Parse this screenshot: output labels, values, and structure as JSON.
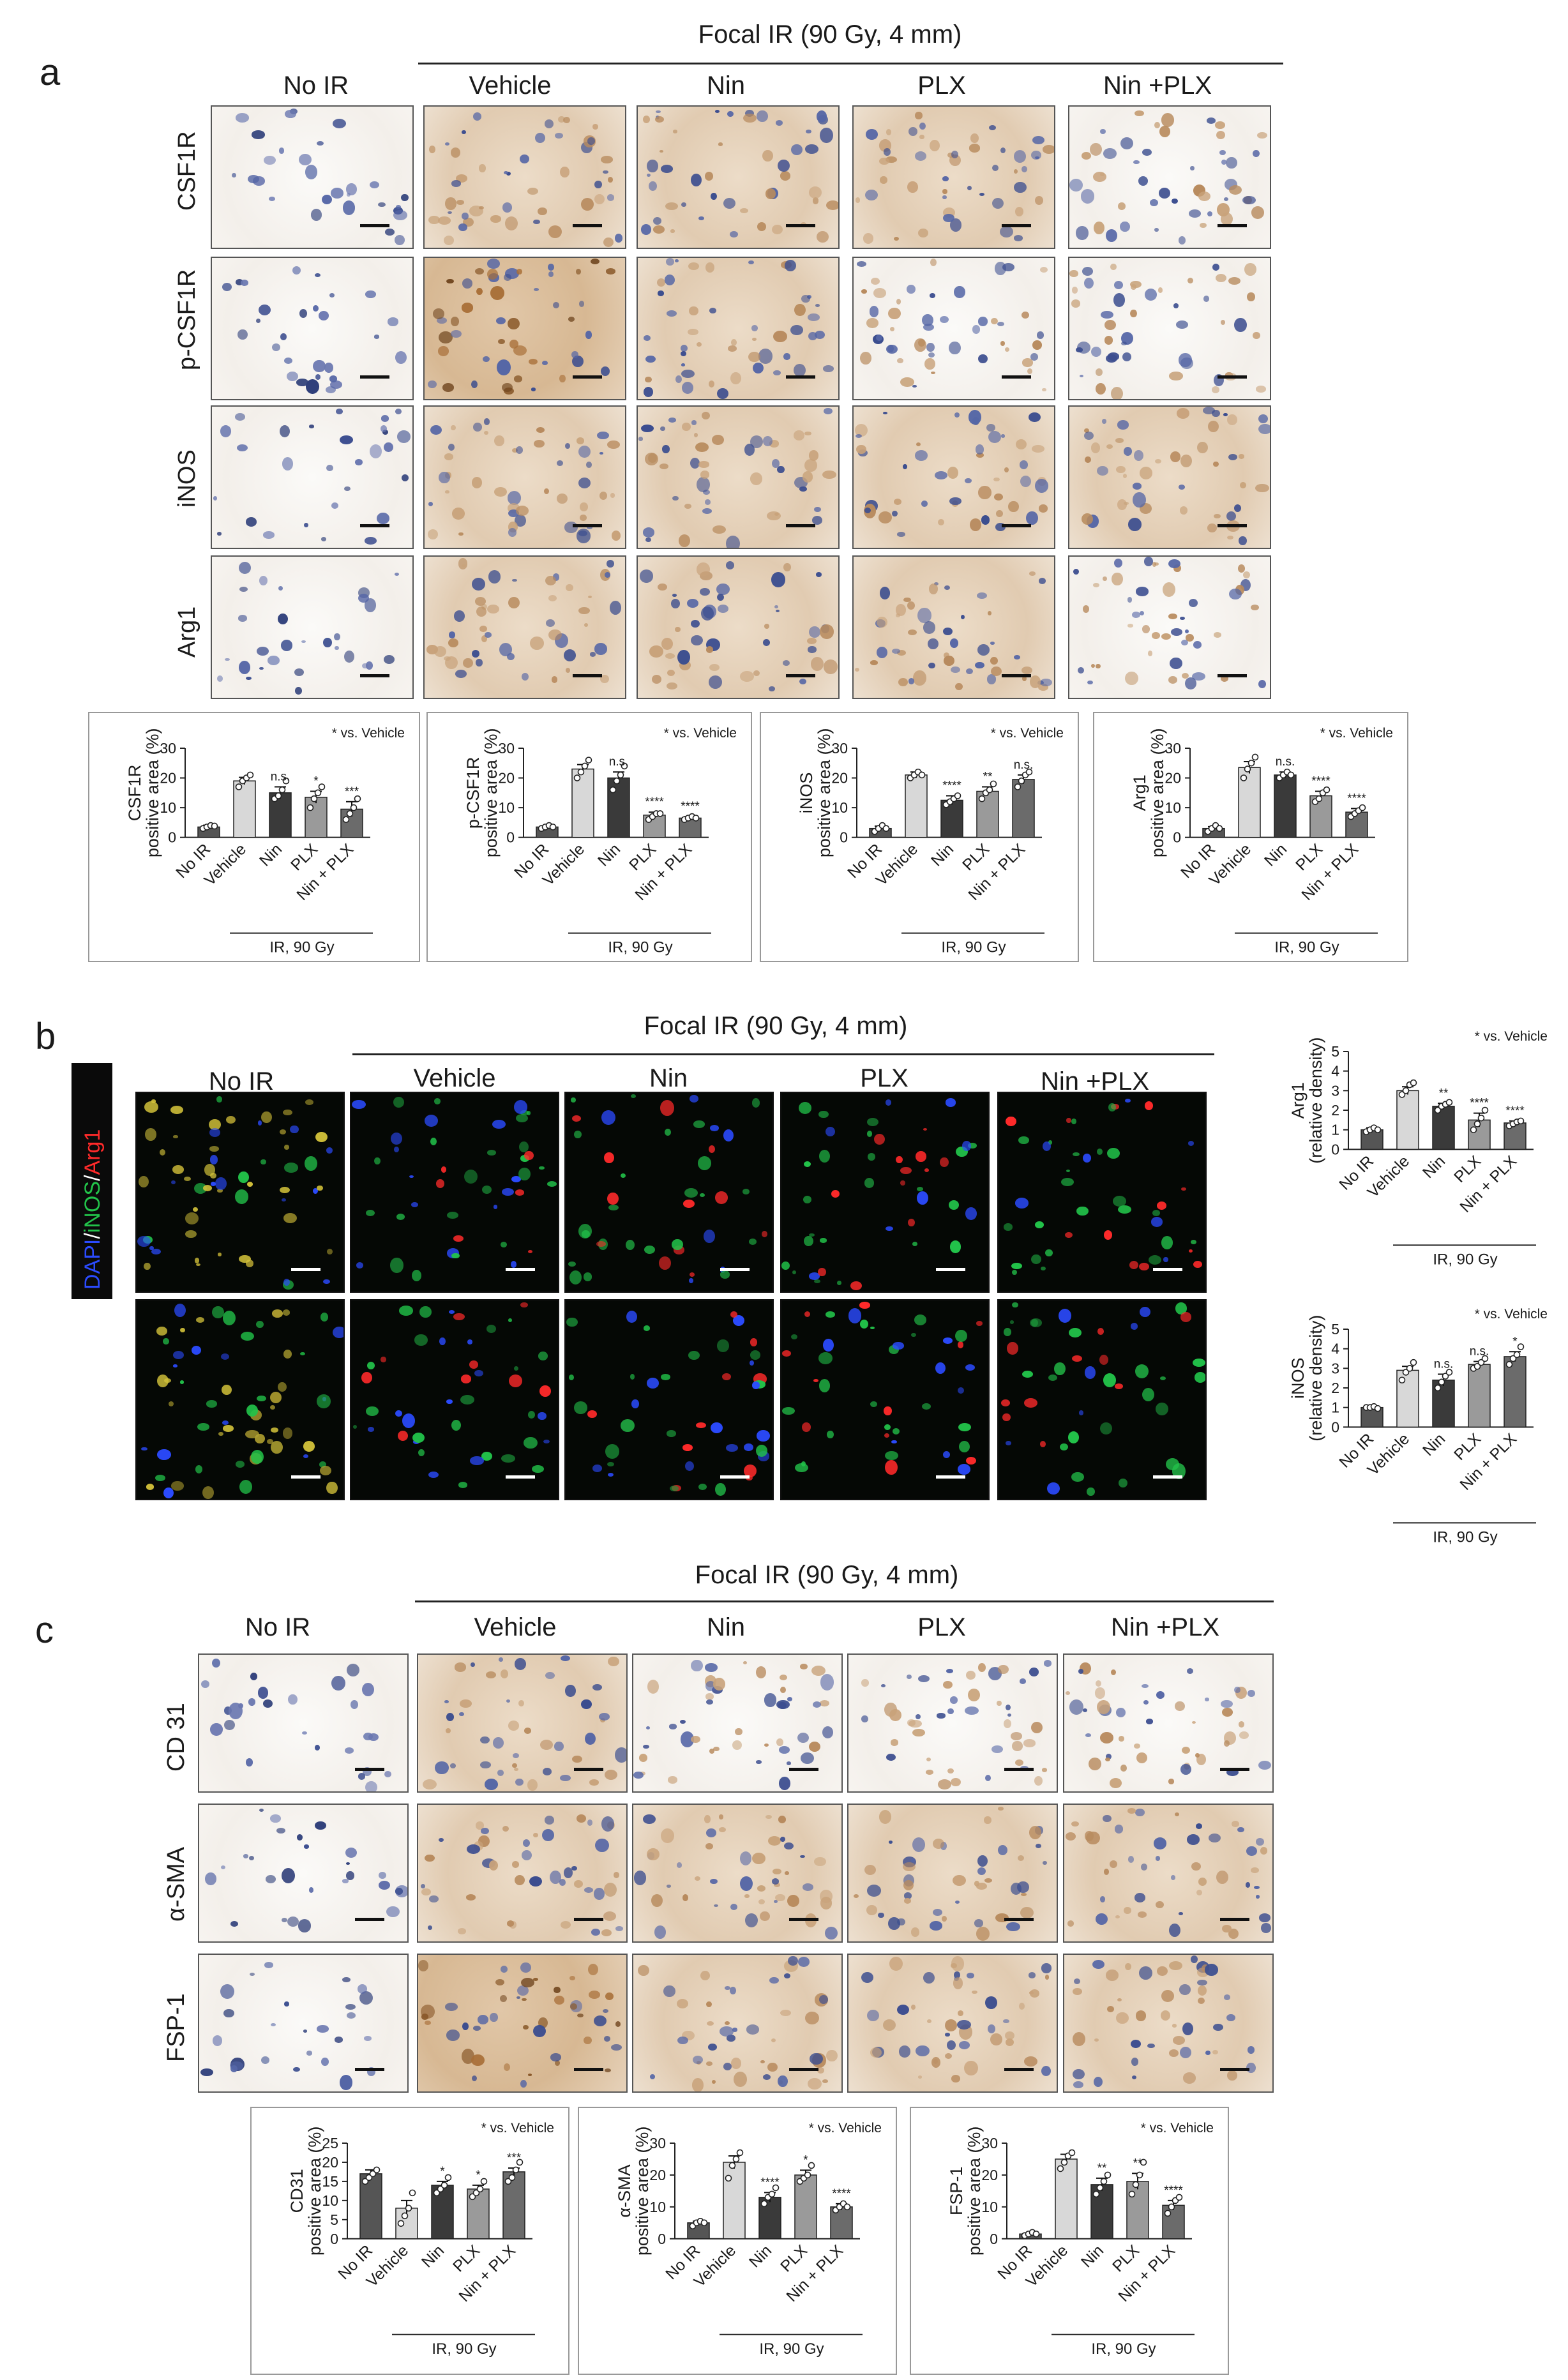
{
  "panels": {
    "a": {
      "letter": "a",
      "focal": "Focal IR (90 Gy, 4 mm)",
      "columns": [
        "No IR",
        "Vehicle",
        "Nin",
        "PLX",
        "Nin +PLX"
      ],
      "rows": [
        "CSF1R",
        "p-CSF1R",
        "iNOS",
        "Arg1"
      ]
    },
    "b": {
      "letter": "b",
      "focal": "Focal IR (90 Gy, 4 mm)",
      "columns": [
        "No IR",
        "Vehicle",
        "Nin",
        "PLX",
        "Nin +PLX"
      ],
      "stain": {
        "dapi": "DAPI",
        "sep1": "/",
        "inos": "iNOS",
        "sep2": "/",
        "arg1": "Arg1"
      },
      "stain_colors": {
        "dapi": "#2b4bff",
        "inos": "#22c34a",
        "arg1": "#ff2a2a"
      }
    },
    "c": {
      "letter": "c",
      "focal": "Focal IR (90 Gy, 4 mm)",
      "columns": [
        "No IR",
        "Vehicle",
        "Nin",
        "PLX",
        "Nin +PLX"
      ],
      "rows": [
        "CD 31",
        "α-SMA",
        "FSP-1"
      ]
    }
  },
  "chart_data": [
    {
      "id": "a1",
      "type": "bar",
      "categories": [
        "No IR",
        "Vehicle",
        "Nin",
        "PLX",
        "Nin + PLX"
      ],
      "values": [
        3.5,
        19,
        15,
        13.5,
        9.5
      ],
      "errors": [
        0.6,
        1.2,
        2.0,
        2.0,
        2.5
      ],
      "points": [
        [
          3,
          3.5,
          4,
          3.8
        ],
        [
          17,
          19,
          20,
          21
        ],
        [
          13,
          14,
          16,
          19
        ],
        [
          10,
          13,
          15,
          17
        ],
        [
          6,
          8,
          10,
          13
        ]
      ],
      "sig": [
        "",
        "",
        "n.s.",
        "*",
        "***"
      ],
      "ylim": [
        0,
        30
      ],
      "yticks": [
        0,
        10,
        20,
        30
      ],
      "ylabel": [
        "CSF1R",
        "positive area (%)"
      ],
      "note": "* vs. Vehicle",
      "group": "IR, 90  Gy"
    },
    {
      "id": "a2",
      "type": "bar",
      "categories": [
        "No IR",
        "Vehicle",
        "Nin",
        "PLX",
        "Nin + PLX"
      ],
      "values": [
        3.5,
        23,
        20,
        7.5,
        6.5
      ],
      "errors": [
        0.4,
        1.5,
        2.0,
        1.0,
        0.5
      ],
      "points": [
        [
          3,
          3.5,
          4,
          3.5
        ],
        [
          20,
          22,
          24,
          26
        ],
        [
          16,
          19,
          21,
          24
        ],
        [
          6,
          7,
          8,
          8
        ],
        [
          6,
          6.5,
          7,
          6.5
        ]
      ],
      "sig": [
        "",
        "",
        "n.s.",
        "****",
        "****"
      ],
      "ylim": [
        0,
        30
      ],
      "yticks": [
        0,
        10,
        20,
        30
      ],
      "ylabel": [
        "p-CSF1R",
        "positive area (%)"
      ],
      "note": "* vs. Vehicle",
      "group": "IR, 90 Gy"
    },
    {
      "id": "a3",
      "type": "bar",
      "categories": [
        "No IR",
        "Vehicle",
        "Nin",
        "PLX",
        "Nin + PLX"
      ],
      "values": [
        3,
        21,
        12.5,
        15.5,
        19.5
      ],
      "errors": [
        0.8,
        1.0,
        1.5,
        1.5,
        1.5
      ],
      "points": [
        [
          2,
          3,
          4,
          3
        ],
        [
          20,
          21,
          22,
          21
        ],
        [
          11,
          12,
          13,
          14
        ],
        [
          13,
          15,
          16,
          18
        ],
        [
          17,
          19,
          21,
          22
        ]
      ],
      "sig": [
        "",
        "",
        "****",
        "**",
        "n.s."
      ],
      "ylim": [
        0,
        30
      ],
      "yticks": [
        0,
        10,
        20,
        30
      ],
      "ylabel": [
        "iNOS",
        "positive area (%)"
      ],
      "note": "* vs. Vehicle",
      "group": "IR, 90 Gy"
    },
    {
      "id": "a4",
      "type": "bar",
      "categories": [
        "No IR",
        "Vehicle",
        "Nin",
        "PLX",
        "Nin + PLX"
      ],
      "values": [
        3,
        23.5,
        21,
        14,
        8.5
      ],
      "errors": [
        0.6,
        2.0,
        1.0,
        1.5,
        1.2
      ],
      "points": [
        [
          2,
          3,
          4,
          3
        ],
        [
          20,
          23,
          25,
          27
        ],
        [
          20,
          21,
          22,
          21
        ],
        [
          12,
          13,
          15,
          16
        ],
        [
          7,
          8,
          9,
          10
        ]
      ],
      "sig": [
        "",
        "",
        "n.s.",
        "****",
        "****"
      ],
      "ylim": [
        0,
        30
      ],
      "yticks": [
        0,
        10,
        20,
        30
      ],
      "ylabel": [
        "Arg1",
        "positive area (%)"
      ],
      "note": "* vs. Vehicle",
      "group": "IR, 90 Gy"
    },
    {
      "id": "b1",
      "type": "bar",
      "categories": [
        "No IR",
        "Vehicle",
        "Nin",
        "PLX",
        "Nin + PLX"
      ],
      "values": [
        1.0,
        3.0,
        2.2,
        1.5,
        1.35
      ],
      "errors": [
        0.1,
        0.2,
        0.15,
        0.35,
        0.1
      ],
      "points": [
        [
          0.9,
          1.0,
          1.1,
          1.0
        ],
        [
          2.8,
          3.0,
          3.3,
          3.4
        ],
        [
          2.0,
          2.2,
          2.3,
          2.4
        ],
        [
          1.0,
          1.3,
          1.6,
          2.0
        ],
        [
          1.2,
          1.3,
          1.4,
          1.45
        ]
      ],
      "sig": [
        "",
        "",
        "**",
        "****",
        "****"
      ],
      "ylim": [
        0,
        5
      ],
      "yticks": [
        0,
        1,
        2,
        3,
        4,
        5
      ],
      "ylabel": [
        "Arg1",
        "(relative density)"
      ],
      "note": "* vs. Vehicle",
      "group": "IR, 90  Gy"
    },
    {
      "id": "b2",
      "type": "bar",
      "categories": [
        "No IR",
        "Vehicle",
        "Nin",
        "PLX",
        "Nin + PLX"
      ],
      "values": [
        1.0,
        2.9,
        2.4,
        3.2,
        3.6
      ],
      "errors": [
        0.05,
        0.2,
        0.3,
        0.15,
        0.25
      ],
      "points": [
        [
          1.0,
          1.0,
          1.05,
          0.95
        ],
        [
          2.4,
          2.8,
          3.0,
          3.3
        ],
        [
          2.0,
          2.3,
          2.6,
          2.8
        ],
        [
          3.0,
          3.1,
          3.3,
          3.5
        ],
        [
          3.2,
          3.5,
          3.7,
          4.1
        ]
      ],
      "sig": [
        "",
        "",
        "n.s.",
        "n.s.",
        "*"
      ],
      "ylim": [
        0,
        5
      ],
      "yticks": [
        0,
        1,
        2,
        3,
        4,
        5
      ],
      "ylabel": [
        "iNOS",
        "(relative density)"
      ],
      "note": "* vs. Vehicle",
      "group": "IR, 90 Gy"
    },
    {
      "id": "c1",
      "type": "bar",
      "categories": [
        "No IR",
        "Vehicle",
        "Nin",
        "PLX",
        "Nin + PLX"
      ],
      "values": [
        17,
        8,
        14,
        13,
        17.5
      ],
      "errors": [
        1.0,
        2.0,
        1.0,
        1.0,
        1.0
      ],
      "points": [
        [
          15,
          16,
          17,
          18
        ],
        [
          4,
          6,
          8,
          12
        ],
        [
          12,
          13,
          14,
          16
        ],
        [
          11,
          12,
          13,
          15
        ],
        [
          15,
          16,
          18,
          20
        ]
      ],
      "sig": [
        "",
        "",
        "*",
        "*",
        "***"
      ],
      "ylim": [
        0,
        25
      ],
      "yticks": [
        0,
        5,
        10,
        15,
        20,
        25
      ],
      "ylabel": [
        "CD31",
        "positive area (%)"
      ],
      "note": "* vs. Vehicle",
      "group": "IR, 90  Gy"
    },
    {
      "id": "c2",
      "type": "bar",
      "categories": [
        "No IR",
        "Vehicle",
        "Nin",
        "PLX",
        "Nin + PLX"
      ],
      "values": [
        5,
        24,
        13,
        20,
        10
      ],
      "errors": [
        0.5,
        2.0,
        1.5,
        1.5,
        1.0
      ],
      "points": [
        [
          4,
          5,
          5.5,
          5
        ],
        [
          19,
          23,
          25,
          27
        ],
        [
          11,
          13,
          14,
          16
        ],
        [
          18,
          19,
          20,
          23
        ],
        [
          9,
          10,
          11,
          10
        ]
      ],
      "sig": [
        "",
        "",
        "****",
        "*",
        "****"
      ],
      "ylim": [
        0,
        30
      ],
      "yticks": [
        0,
        10,
        20,
        30
      ],
      "ylabel": [
        "α-SMA",
        "positive area (%)"
      ],
      "note": "* vs. Vehicle",
      "group": "IR, 90 Gy"
    },
    {
      "id": "c3",
      "type": "bar",
      "categories": [
        "No IR",
        "Vehicle",
        "Nin",
        "PLX",
        "Nin + PLX"
      ],
      "values": [
        1.5,
        25,
        17,
        18,
        10.5
      ],
      "errors": [
        0.3,
        1.5,
        2.0,
        2.5,
        1.5
      ],
      "points": [
        [
          1,
          1.5,
          2,
          1.5
        ],
        [
          22,
          24,
          26,
          27
        ],
        [
          14,
          16,
          18,
          20
        ],
        [
          14,
          17,
          20,
          24
        ],
        [
          8,
          10,
          12,
          13
        ]
      ],
      "sig": [
        "",
        "",
        "**",
        "**",
        "****"
      ],
      "ylim": [
        0,
        30
      ],
      "yticks": [
        0,
        10,
        20,
        30
      ],
      "ylabel": [
        "FSP-1",
        "positive area (%)"
      ],
      "note": "* vs. Vehicle",
      "group": "IR, 90 Gy"
    }
  ]
}
